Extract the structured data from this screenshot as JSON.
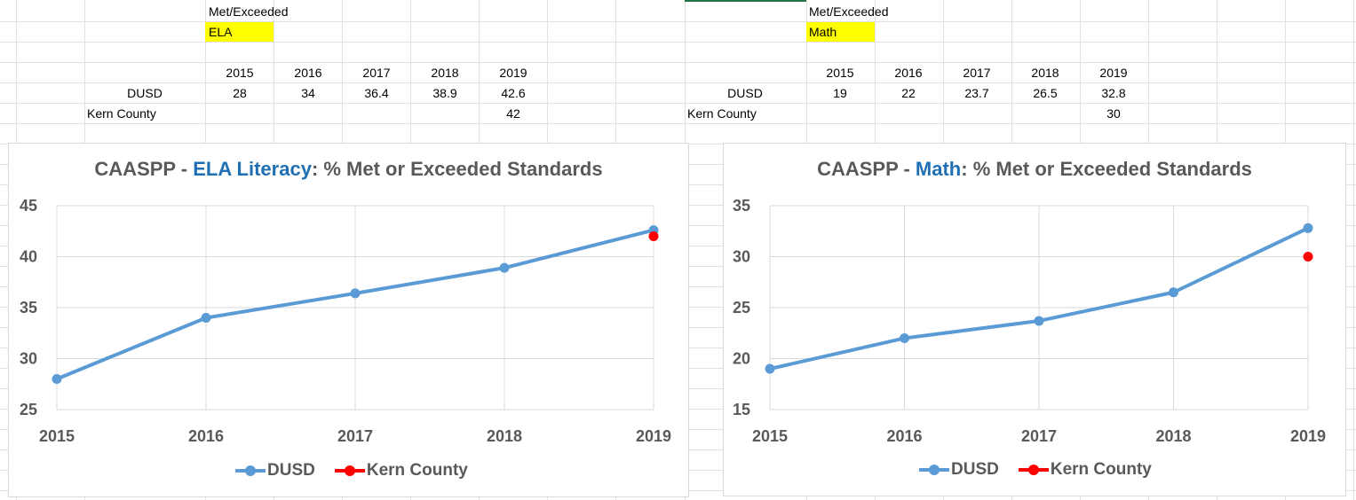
{
  "colors": {
    "dusd": "#5b9bd5",
    "kern": "#ff0000",
    "highlight": "#ffff00",
    "title_accent": "#1f6fb2",
    "text_gray": "#595959",
    "grid": "#d9d9d9"
  },
  "sheet": {
    "left": {
      "met_label": "Met/Exceeded",
      "subject": "ELA",
      "years": [
        "2015",
        "2016",
        "2017",
        "2018",
        "2019"
      ],
      "dusd_label": "DUSD",
      "dusd_values": [
        "28",
        "34",
        "36.4",
        "38.9",
        "42.6"
      ],
      "kern_label": "Kern County",
      "kern_values": [
        "",
        "",
        "",
        "",
        "42"
      ]
    },
    "right": {
      "met_label": "Met/Exceeded",
      "subject": "Math",
      "years": [
        "2015",
        "2016",
        "2017",
        "2018",
        "2019"
      ],
      "dusd_label": "DUSD",
      "dusd_values": [
        "19",
        "22",
        "23.7",
        "26.5",
        "32.8"
      ],
      "kern_label": "Kern County",
      "kern_values": [
        "",
        "",
        "",
        "",
        "30"
      ]
    }
  },
  "chart_data": [
    {
      "type": "line",
      "title_prefix": "CAASPP - ",
      "title_subject": "ELA Literacy",
      "title_suffix": ": % Met or Exceeded Standards",
      "x": [
        "2015",
        "2016",
        "2017",
        "2018",
        "2019"
      ],
      "ylim": [
        25,
        45
      ],
      "yticks": [
        25,
        30,
        35,
        40,
        45
      ],
      "grid": true,
      "legend": "bottom",
      "series": [
        {
          "name": "DUSD",
          "values": [
            28,
            34,
            36.4,
            38.9,
            42.6
          ],
          "color": "#5b9bd5"
        },
        {
          "name": "Kern County",
          "values": [
            null,
            null,
            null,
            null,
            42
          ],
          "color": "#ff0000"
        }
      ]
    },
    {
      "type": "line",
      "title_prefix": "CAASPP - ",
      "title_subject": "Math",
      "title_suffix": ": % Met or Exceeded Standards",
      "x": [
        "2015",
        "2016",
        "2017",
        "2018",
        "2019"
      ],
      "ylim": [
        15,
        35
      ],
      "yticks": [
        15,
        20,
        25,
        30,
        35
      ],
      "grid": true,
      "legend": "bottom",
      "series": [
        {
          "name": "DUSD",
          "values": [
            19,
            22,
            23.7,
            26.5,
            32.8
          ],
          "color": "#5b9bd5"
        },
        {
          "name": "Kern County",
          "values": [
            null,
            null,
            null,
            null,
            30
          ],
          "color": "#ff0000"
        }
      ]
    }
  ]
}
